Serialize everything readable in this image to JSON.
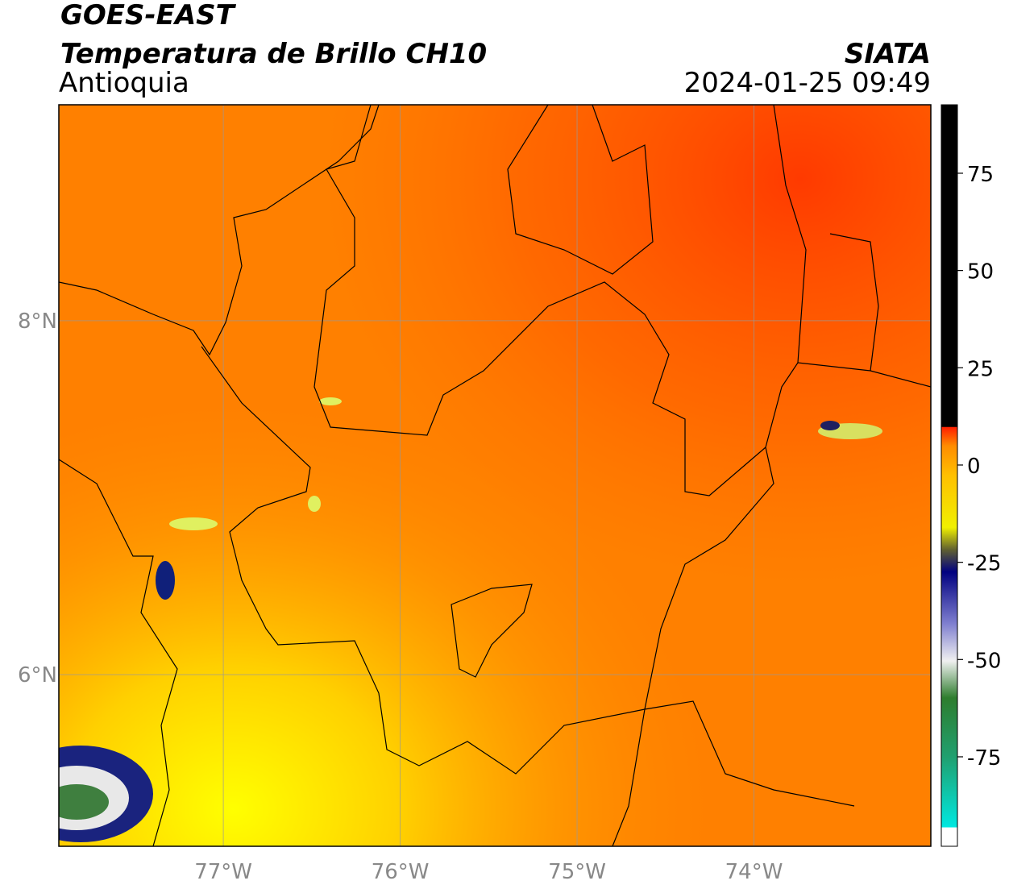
{
  "header": {
    "satellite": "GOES-EAST",
    "product": "Temperatura de Brillo CH10",
    "region": "Antioquia",
    "agency": "SIATA",
    "timestamp": "2024-01-25 09:49"
  },
  "map": {
    "lonlim": [
      -77.93,
      -73.0
    ],
    "latlim": [
      5.03,
      9.22
    ],
    "lon_ticks": [
      {
        "value": -77,
        "label": "77°W"
      },
      {
        "value": -76,
        "label": "76°W"
      },
      {
        "value": -75,
        "label": "75°W"
      },
      {
        "value": -74,
        "label": "74°W"
      }
    ],
    "lat_ticks": [
      {
        "value": 8,
        "label": "8°N"
      },
      {
        "value": 6,
        "label": "6°N"
      }
    ]
  },
  "colorbar": {
    "lim": [
      -98,
      92.6
    ],
    "ticks": [
      75,
      50,
      25,
      0,
      -25,
      -50,
      -75
    ]
  }
}
